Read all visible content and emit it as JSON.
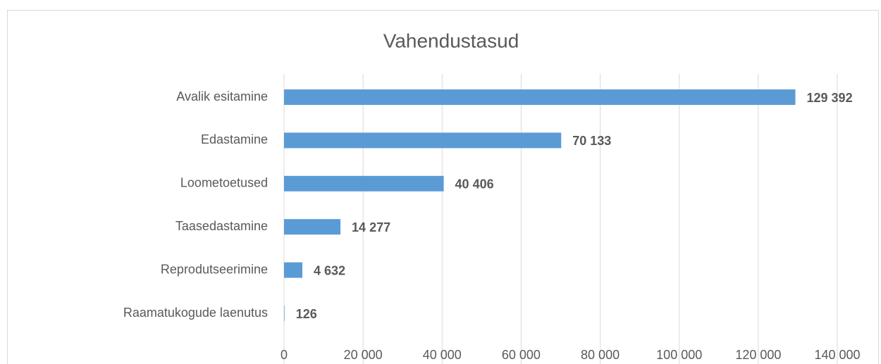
{
  "chart_data": {
    "type": "bar",
    "orientation": "horizontal",
    "title": "Vahendustasud",
    "categories": [
      "Avalik esitamine",
      "Edastamine",
      "Loometoetused",
      "Taasedastamine",
      "Reprodutseerimine",
      "Raamatukogude laenutus"
    ],
    "values": [
      129392,
      70133,
      40406,
      14277,
      4632,
      126
    ],
    "value_labels": [
      "129 392",
      "70 133",
      "40 406",
      "14 277",
      "4 632",
      "126"
    ],
    "color": "#5b9bd5",
    "xlim": [
      0,
      140000
    ],
    "xticks": [
      0,
      {
        "value": 20000,
        "label": "20 000"
      },
      {
        "value": 40000,
        "label": "40 000"
      },
      {
        "value": 60000,
        "label": "60 000"
      },
      {
        "value": 80000,
        "label": "80 000"
      },
      {
        "value": 100000,
        "label": "100 000"
      },
      {
        "value": 120000,
        "label": "120 000"
      },
      {
        "value": 140000,
        "label": "140 000"
      }
    ],
    "grid": true
  }
}
